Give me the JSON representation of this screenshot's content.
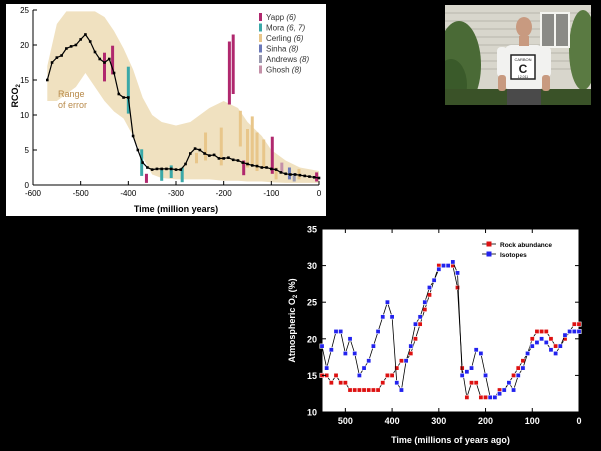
{
  "chart_data": [
    {
      "type": "line",
      "ylabel": "RCO",
      "ylabel_subscript": "2",
      "xlabel": "Time (million years)",
      "xlim": [
        -600,
        0
      ],
      "ylim": [
        0,
        25
      ],
      "x_ticks": [
        "-600",
        "-500",
        "-400",
        "-300",
        "-200",
        "-100",
        "0"
      ],
      "y_ticks": [
        "0",
        "5",
        "10",
        "15",
        "20",
        "25"
      ],
      "band_label": [
        "Range",
        "of error"
      ],
      "colors": {
        "band": "#f0e1c0",
        "line": "#000000",
        "band_text": "#b88a4a"
      },
      "series": [
        {
          "name": "",
          "x": [
            -570,
            -560,
            -550,
            -540,
            -530,
            -520,
            -510,
            -500,
            -490,
            -480,
            -470,
            -460,
            -450,
            -440,
            -430,
            -420,
            -410,
            -400,
            -390,
            -380,
            -370,
            -360,
            -350,
            -340,
            -330,
            -320,
            -310,
            -300,
            -290,
            -280,
            -270,
            -260,
            -250,
            -240,
            -230,
            -220,
            -210,
            -200,
            -190,
            -180,
            -170,
            -160,
            -150,
            -140,
            -130,
            -120,
            -110,
            -100,
            -90,
            -80,
            -70,
            -60,
            -50,
            -40,
            -30,
            -20,
            -10,
            0
          ],
          "y": [
            15,
            17.5,
            18.2,
            18.5,
            19.5,
            19.8,
            20,
            20.8,
            21.5,
            20.5,
            19,
            18,
            17.5,
            18,
            16,
            13,
            12.5,
            12.5,
            7,
            5,
            3.2,
            2.5,
            2.2,
            2.3,
            2.3,
            2.3,
            2.3,
            2.2,
            2.2,
            3,
            4.5,
            5.2,
            5,
            4.5,
            4.2,
            4.3,
            3.8,
            3.8,
            3.9,
            3.6,
            3.5,
            3.2,
            3,
            2.8,
            2.7,
            2.5,
            2.5,
            2.3,
            2.2,
            1.8,
            1.6,
            1.5,
            1.5,
            1.4,
            1.3,
            1.2,
            1.1,
            1
          ]
        }
      ],
      "band": {
        "x": [
          -570,
          -550,
          -530,
          -510,
          -490,
          -470,
          -450,
          -430,
          -410,
          -390,
          -370,
          -350,
          -330,
          -300,
          -270,
          -250,
          -230,
          -200,
          -170,
          -150,
          -120,
          -100,
          -70,
          -40,
          0
        ],
        "upper": [
          17,
          23,
          24.8,
          24.8,
          24.8,
          24.8,
          24,
          22,
          19.5,
          16.5,
          12.5,
          10,
          9,
          8.5,
          9,
          10,
          11,
          12,
          11,
          9,
          7,
          5,
          3.5,
          2.5,
          2
        ],
        "lower": [
          12,
          12,
          13,
          14,
          16,
          14,
          12,
          10.5,
          9.5,
          7,
          4,
          1.5,
          1,
          0.8,
          0.8,
          0.8,
          0.8,
          0.6,
          0.6,
          0.5,
          0.5,
          0.4,
          0.3,
          0.3,
          0.3
        ]
      },
      "proxy_bars": [
        {
          "set": "Yapp",
          "color": "#b0286e",
          "x": -450,
          "low": 14.8,
          "high": 18.9
        },
        {
          "set": "Yapp",
          "color": "#b0286e",
          "x": -433,
          "low": 15.8,
          "high": 19.9
        },
        {
          "set": "Mora",
          "color": "#3aa8a8",
          "x": -400,
          "low": 10.2,
          "high": 16.9
        },
        {
          "set": "Mora",
          "color": "#3aa8a8",
          "x": -372,
          "low": 1.3,
          "high": 5.1
        },
        {
          "set": "Yapp",
          "color": "#b0286e",
          "x": -362,
          "low": 0.3,
          "high": 1.6
        },
        {
          "set": "Mora",
          "color": "#3aa8a8",
          "x": -330,
          "low": 0.6,
          "high": 2.4
        },
        {
          "set": "Mora",
          "color": "#3aa8a8",
          "x": -310,
          "low": 1,
          "high": 2.8
        },
        {
          "set": "Mora",
          "color": "#3aa8a8",
          "x": -287,
          "low": 0.4,
          "high": 2.5
        },
        {
          "set": "Cerling",
          "color": "#e8c68a",
          "x": -257,
          "low": 3.1,
          "high": 4.6
        },
        {
          "set": "Cerling",
          "color": "#e8c68a",
          "x": -238,
          "low": 3.5,
          "high": 7.5
        },
        {
          "set": "Cerling",
          "color": "#e8c68a",
          "x": -205,
          "low": 2.8,
          "high": 8.2
        },
        {
          "set": "Yapp",
          "color": "#b0286e",
          "x": -188,
          "low": 11.5,
          "high": 20.5
        },
        {
          "set": "Yapp",
          "color": "#b0286e",
          "x": -180,
          "low": 13,
          "high": 21.5
        },
        {
          "set": "Cerling",
          "color": "#e8c68a",
          "x": -165,
          "low": 5.5,
          "high": 10.6
        },
        {
          "set": "Yapp",
          "color": "#b0286e",
          "x": -158,
          "low": 1.4,
          "high": 3.5
        },
        {
          "set": "Cerling",
          "color": "#e8c68a",
          "x": -150,
          "low": 2.5,
          "high": 8
        },
        {
          "set": "Cerling",
          "color": "#e8c68a",
          "x": -140,
          "low": 3,
          "high": 9.8
        },
        {
          "set": "Cerling",
          "color": "#e8c68a",
          "x": -130,
          "low": 2,
          "high": 7.5
        },
        {
          "set": "Cerling",
          "color": "#e8c68a",
          "x": -116,
          "low": 2.5,
          "high": 6.5
        },
        {
          "set": "Yapp",
          "color": "#b0286e",
          "x": -98,
          "low": 1.6,
          "high": 6.9
        },
        {
          "set": "Cerling",
          "color": "#e8c68a",
          "x": -90,
          "low": 0.8,
          "high": 2.5
        },
        {
          "set": "Ghosh",
          "color": "#c490a8",
          "x": -78,
          "low": 1.8,
          "high": 3.2
        },
        {
          "set": "Sinha",
          "color": "#6a78b8",
          "x": -62,
          "low": 0.8,
          "high": 2.5
        },
        {
          "set": "Andrews",
          "color": "#9a9ab0",
          "x": -52,
          "low": 0.5,
          "high": 1.7
        },
        {
          "set": "Cerling",
          "color": "#e8c68a",
          "x": -42,
          "low": 0.8,
          "high": 2.3
        },
        {
          "set": "Yapp",
          "color": "#b0286e",
          "x": -5,
          "low": 0.5,
          "high": 1.8
        }
      ],
      "legend": [
        {
          "label": "Yapp",
          "ref": "(6)",
          "color": "#b0286e"
        },
        {
          "label": "Mora",
          "ref": "(6, 7)",
          "color": "#3aa8a8"
        },
        {
          "label": "Cerling",
          "ref": "(6)",
          "color": "#e8c68a"
        },
        {
          "label": "Sinha",
          "ref": "(8)",
          "color": "#6a78b8"
        },
        {
          "label": "Andrews",
          "ref": "(8)",
          "color": "#9a9ab0"
        },
        {
          "label": "Ghosh",
          "ref": "(8)",
          "color": "#c490a8"
        }
      ],
      "legend_placement": "top-right",
      "grid": false
    },
    {
      "type": "line",
      "ylabel": "Atmospheric O",
      "ylabel_subscript": "2",
      "ylabel_unit": " (%)",
      "xlabel": "Time (millions of years ago)",
      "xlim": [
        550,
        0
      ],
      "ylim": [
        10,
        35
      ],
      "x_ticks": [
        "500",
        "400",
        "300",
        "200",
        "100",
        "0"
      ],
      "y_ticks": [
        "10",
        "15",
        "20",
        "25",
        "30",
        "35"
      ],
      "legend_placement": "top-right",
      "grid": false,
      "colors": {
        "background": "#ffffff",
        "axes": "#000000"
      },
      "series": [
        {
          "name": "Rock abundance",
          "color": "#dd1111",
          "x": [
            550,
            540,
            530,
            520,
            510,
            500,
            490,
            480,
            470,
            460,
            450,
            440,
            430,
            420,
            410,
            400,
            390,
            380,
            370,
            360,
            350,
            340,
            330,
            320,
            310,
            300,
            290,
            280,
            270,
            260,
            250,
            240,
            230,
            220,
            210,
            200,
            190,
            180,
            170,
            160,
            150,
            140,
            130,
            120,
            110,
            100,
            90,
            80,
            70,
            60,
            50,
            40,
            30,
            20,
            10,
            0
          ],
          "y": [
            15,
            15,
            14,
            15,
            14,
            14,
            13,
            13,
            13,
            13,
            13,
            13,
            13,
            14,
            15,
            15,
            16,
            17,
            17,
            18,
            20,
            22,
            24,
            26,
            28,
            30,
            30,
            30,
            30,
            27,
            16,
            12,
            14,
            14,
            12,
            12,
            12,
            12,
            13,
            13,
            14,
            15,
            16,
            17,
            18,
            20,
            21,
            21,
            21,
            20,
            19,
            19,
            20,
            21,
            22,
            22
          ]
        },
        {
          "name": "Isotopes",
          "color": "#2222ee",
          "x": [
            550,
            540,
            530,
            520,
            510,
            500,
            490,
            480,
            470,
            460,
            450,
            440,
            430,
            420,
            410,
            400,
            390,
            380,
            370,
            360,
            350,
            340,
            330,
            320,
            310,
            300,
            290,
            280,
            270,
            260,
            250,
            240,
            230,
            220,
            210,
            200,
            190,
            180,
            170,
            160,
            150,
            140,
            130,
            120,
            110,
            100,
            90,
            80,
            70,
            60,
            50,
            40,
            30,
            20,
            10,
            0
          ],
          "y": [
            19,
            16,
            18.5,
            21,
            21,
            18,
            20,
            18,
            15,
            16,
            17,
            19,
            21,
            23,
            25,
            23,
            14,
            13,
            17,
            19,
            22,
            23,
            25,
            27,
            28,
            29.5,
            30,
            30,
            30.5,
            29,
            15,
            15.5,
            16,
            18.5,
            18,
            15,
            12,
            12,
            12.5,
            13,
            14,
            13,
            15,
            16,
            18,
            19,
            19.5,
            20,
            19.5,
            18.5,
            18,
            19,
            20.5,
            21,
            21,
            21
          ]
        }
      ]
    }
  ],
  "photo": {
    "shirt_letter": "C",
    "shirt_top_text": "CARBON",
    "shirt_bottom_text": "12.011"
  }
}
